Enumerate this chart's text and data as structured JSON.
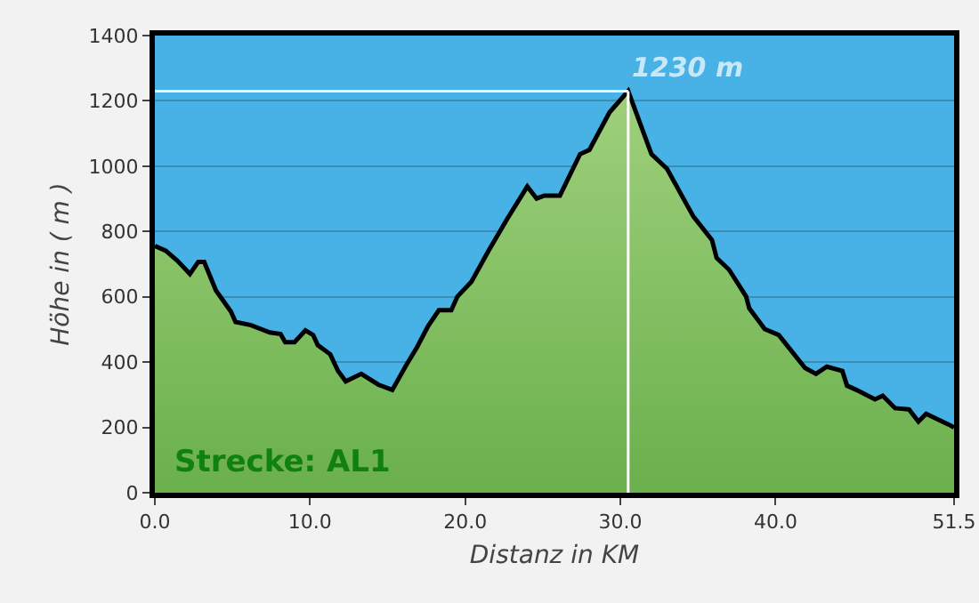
{
  "chart_data": {
    "type": "area",
    "xlabel": "Distanz in KM",
    "ylabel": "Höhe in ( m )",
    "x": [
      0,
      0.7,
      1.46,
      2.26,
      2.8,
      3.18,
      3.94,
      4.9,
      5.2,
      6.2,
      7.4,
      8.1,
      8.4,
      9.0,
      9.7,
      10.2,
      10.5,
      11.3,
      11.8,
      12.3,
      13.3,
      14.4,
      15.3,
      16.2,
      16.9,
      17.6,
      18.3,
      19.1,
      19.5,
      20.4,
      21.5,
      22.7,
      24.0,
      24.6,
      25.1,
      26.1,
      27.4,
      28.0,
      29.3,
      30.5,
      32.0,
      33.0,
      34.7,
      35.9,
      36.2,
      37.0,
      38.1,
      38.3,
      39.3,
      40.2,
      41.9,
      42.6,
      43.3,
      44.3,
      44.6,
      45.2,
      46.4,
      46.9,
      47.7,
      48.6,
      49.2,
      49.7,
      51.1,
      51.5
    ],
    "series": [
      {
        "color": "#9fd07c",
        "values": [
          756,
          741,
          710,
          670,
          707,
          707,
          619,
          555,
          523,
          513,
          491,
          486,
          461,
          461,
          497,
          483,
          452,
          424,
          373,
          341,
          364,
          331,
          315,
          391,
          446,
          510,
          559,
          559,
          601,
          646,
          741,
          838,
          938,
          901,
          910,
          910,
          1037,
          1050,
          1165,
          1230,
          1037,
          992,
          846,
          774,
          719,
          683,
          601,
          565,
          501,
          483,
          382,
          364,
          386,
          373,
          328,
          315,
          286,
          297,
          259,
          255,
          218,
          242,
          210,
          200
        ]
      }
    ],
    "xlim": [
      0,
      51.5
    ],
    "xticks": [
      {
        "value": 0,
        "label": "0.0"
      },
      {
        "value": 10,
        "label": "10.0"
      },
      {
        "value": 20,
        "label": "20.0"
      },
      {
        "value": 30,
        "label": "30.0"
      },
      {
        "value": 40,
        "label": "40.0"
      },
      {
        "value": 51.5,
        "label": "51.5"
      }
    ],
    "ylim": [
      0,
      1400
    ],
    "yticks": [
      0,
      200,
      400,
      600,
      800,
      1000,
      1200,
      1400
    ],
    "grid": "y",
    "ref_lines": [
      {
        "axis": "x",
        "value": 30.5,
        "color": "#ffffff"
      },
      {
        "axis": "y",
        "value": 1230,
        "color": "#e8f4fb"
      }
    ],
    "annotations": [
      {
        "text": "1230 m",
        "x": 30.5,
        "y": 1230
      },
      "Strecke: AL1"
    ]
  }
}
